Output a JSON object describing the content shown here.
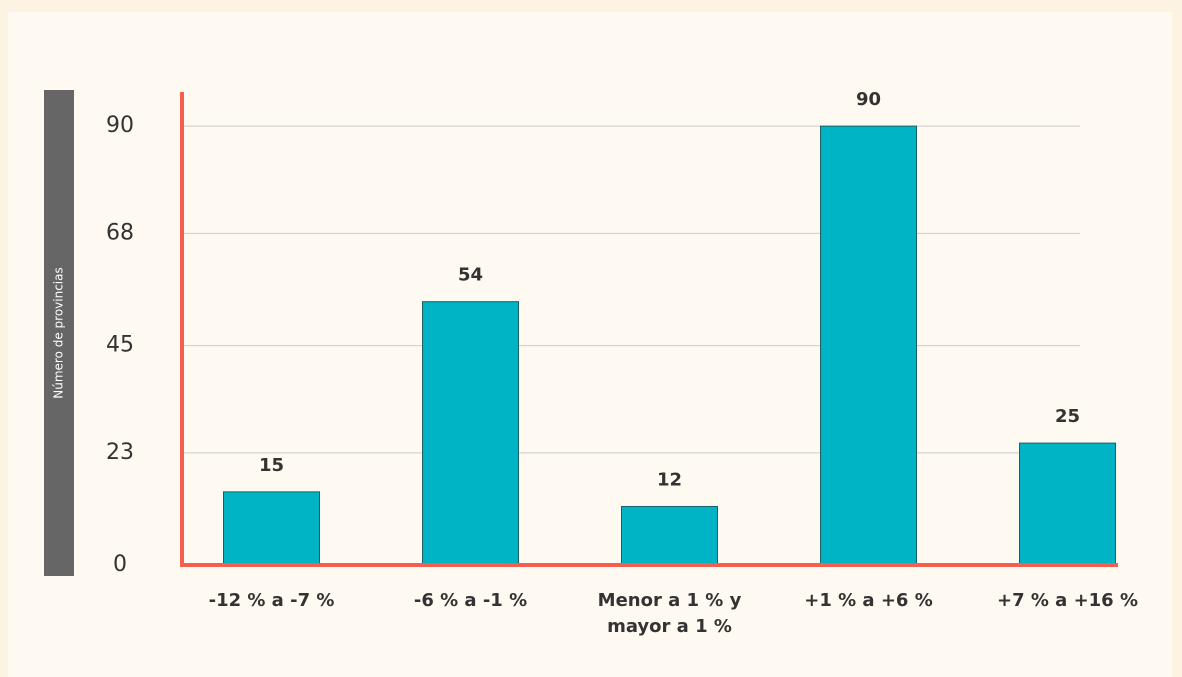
{
  "chart_data": {
    "type": "bar",
    "y_label": "Número de provincias",
    "categories": [
      "-12 % a -7 %",
      "-6 % a -1 %",
      "Menor a 1 % y mayor a 1 %",
      "+1 % a +6 %",
      "+7 % a +16 %"
    ],
    "values": [
      15,
      54,
      12,
      90,
      25
    ],
    "color": "#00b4c5",
    "ylim": [
      0,
      97
    ],
    "yticks": [
      0,
      23,
      45,
      68,
      90
    ],
    "grid": true
  }
}
